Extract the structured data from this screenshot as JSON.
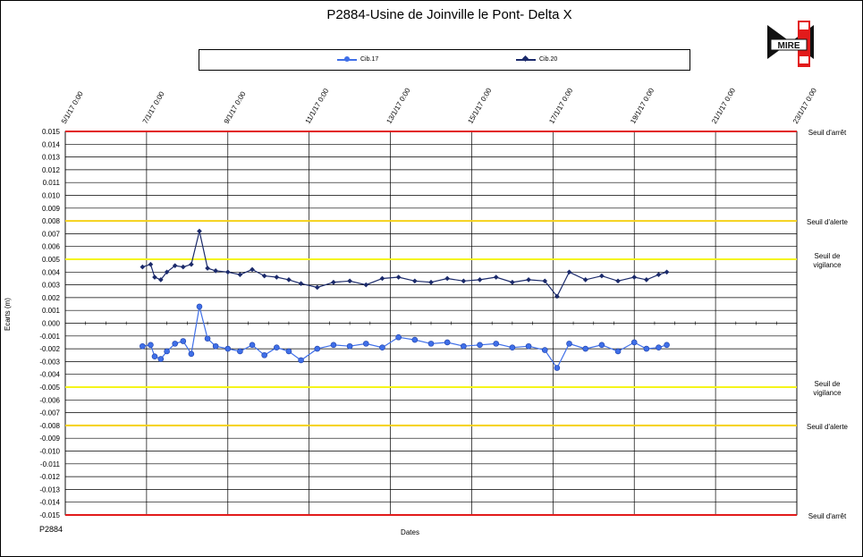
{
  "chart_data": {
    "type": "line",
    "title": "P2884-Usine de  Joinville le Pont- Delta X",
    "xlabel": "Dates",
    "ylabel": "Ecarts (m)",
    "footer": "P2884",
    "ylim": [
      -0.015,
      0.015
    ],
    "ytick_labels": [
      "0.015",
      "0.014",
      "0.013",
      "0.012",
      "0.011",
      "0.010",
      "0.009",
      "0.008",
      "0.007",
      "0.006",
      "0.005",
      "0.004",
      "0.003",
      "0.002",
      "0.001",
      "0.000",
      "-0.001",
      "-0.002",
      "-0.003",
      "-0.004",
      "-0.005",
      "-0.006",
      "-0.007",
      "-0.008",
      "-0.009",
      "-0.010",
      "-0.011",
      "-0.012",
      "-0.013",
      "-0.014",
      "-0.015"
    ],
    "xtick_labels": [
      "5/1/17 0:00",
      "7/1/17 0:00",
      "9/1/17 0:00",
      "11/1/17 0:00",
      "13/1/17 0:00",
      "15/1/17 0:00",
      "17/1/17 0:00",
      "19/1/17 0:00",
      "21/1/17 0:00",
      "23/1/17 0:00"
    ],
    "grid": true,
    "legend_position": "top",
    "series": [
      {
        "name": "Cib.17",
        "color": "#3f6fe8",
        "x_days": [
          6.9,
          7.1,
          7.2,
          7.35,
          7.5,
          7.7,
          7.9,
          8.1,
          8.3,
          8.5,
          8.7,
          9.0,
          9.3,
          9.6,
          9.9,
          10.2,
          10.5,
          10.8,
          11.2,
          11.6,
          12.0,
          12.4,
          12.8,
          13.2,
          13.6,
          14.0,
          14.4,
          14.8,
          15.2,
          15.6,
          16.0,
          16.4,
          16.8,
          17.1,
          17.4,
          17.8,
          18.2,
          18.6,
          19.0,
          19.3,
          19.6,
          19.8
        ],
        "values": [
          -0.0018,
          -0.0017,
          -0.0026,
          -0.0028,
          -0.0022,
          -0.0016,
          -0.0014,
          -0.0024,
          0.0013,
          -0.0012,
          -0.0018,
          -0.002,
          -0.0022,
          -0.0017,
          -0.0025,
          -0.0019,
          -0.0022,
          -0.0029,
          -0.002,
          -0.0017,
          -0.0018,
          -0.0016,
          -0.0019,
          -0.0011,
          -0.0013,
          -0.0016,
          -0.0015,
          -0.0018,
          -0.0017,
          -0.0016,
          -0.0019,
          -0.0018,
          -0.0021,
          -0.0035,
          -0.0016,
          -0.002,
          -0.0017,
          -0.0022,
          -0.0015,
          -0.002,
          -0.0019,
          -0.0017
        ]
      },
      {
        "name": "Cib.20",
        "color": "#1b2a6b",
        "x_days": [
          6.9,
          7.1,
          7.2,
          7.35,
          7.5,
          7.7,
          7.9,
          8.1,
          8.3,
          8.5,
          8.7,
          9.0,
          9.3,
          9.6,
          9.9,
          10.2,
          10.5,
          10.8,
          11.2,
          11.6,
          12.0,
          12.4,
          12.8,
          13.2,
          13.6,
          14.0,
          14.4,
          14.8,
          15.2,
          15.6,
          16.0,
          16.4,
          16.8,
          17.1,
          17.4,
          17.8,
          18.2,
          18.6,
          19.0,
          19.3,
          19.6,
          19.8
        ],
        "values": [
          0.0044,
          0.0046,
          0.0036,
          0.0034,
          0.004,
          0.0045,
          0.0044,
          0.0046,
          0.0072,
          0.0043,
          0.0041,
          0.004,
          0.0038,
          0.0042,
          0.0037,
          0.0036,
          0.0034,
          0.0031,
          0.0028,
          0.0032,
          0.0033,
          0.003,
          0.0035,
          0.0036,
          0.0033,
          0.0032,
          0.0035,
          0.0033,
          0.0034,
          0.0036,
          0.0032,
          0.0034,
          0.0033,
          0.0021,
          0.004,
          0.0034,
          0.0037,
          0.0033,
          0.0036,
          0.0034,
          0.0038,
          0.004
        ]
      }
    ],
    "thresholds": [
      {
        "value": 0.015,
        "label": "Seuil d'arrêt",
        "color": "#e21b1b"
      },
      {
        "value": 0.008,
        "label": "Seuil d'alerte",
        "color": "#f5d11a"
      },
      {
        "value": 0.005,
        "label": "Seuil de\nvigilance",
        "color": "#f5f51a"
      },
      {
        "value": -0.005,
        "label": "Seuil de\nvigilance",
        "color": "#f5f51a"
      },
      {
        "value": -0.008,
        "label": "Seuil d'alerte",
        "color": "#f5d11a"
      },
      {
        "value": -0.015,
        "label": "Seuil d'arrêt",
        "color": "#e21b1b"
      }
    ]
  },
  "logo": {
    "text": "MIRE",
    "colors": [
      "#e21b1b",
      "#111111",
      "#ffffff"
    ]
  }
}
